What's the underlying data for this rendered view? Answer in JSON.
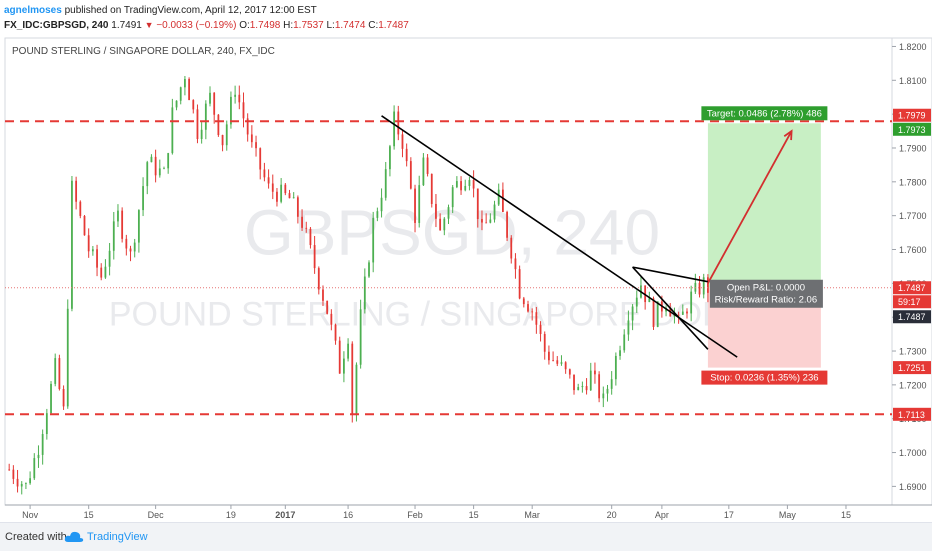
{
  "header": {
    "author": "agnelmoses",
    "published_text": " published on TradingView.com, April 12, 2017 12:00 EST",
    "symbol": "FX_IDC:GBPSGD, 240",
    "last": "1.7491",
    "change": "−0.0033 (−0.19%)",
    "o_label": "O:",
    "o_val": "1.7498",
    "h_label": "H:",
    "h_val": "1.7537",
    "l_label": "L:",
    "l_val": "1.7474",
    "c_label": "C:",
    "c_val": "1.7487"
  },
  "footer": {
    "created": "Created with",
    "brand": "TradingView"
  },
  "chart_data": {
    "type": "candlestick",
    "title": "POUND STERLING / SINGAPORE DOLLAR, 240, FX_IDC",
    "watermark_symbol": "GBPSGD, 240",
    "watermark_name": "POUND STERLING / SINGAPORE DOLLAR",
    "ylim": [
      1.685,
      1.825
    ],
    "y_ticks": [
      "1.6900",
      "1.7000",
      "1.7100",
      "1.7200",
      "1.7300",
      "1.7400",
      "1.7500",
      "1.7600",
      "1.7700",
      "1.7800",
      "1.7900",
      "1.8000",
      "1.8100",
      "1.8200"
    ],
    "x_ticks": [
      "Nov",
      "15",
      "Dec",
      "19",
      "2017",
      "16",
      "Feb",
      "15",
      "Mar",
      "20",
      "Apr",
      "17",
      "May",
      "15"
    ],
    "x_tick_dates": [
      "2016-11-01",
      "2016-11-15",
      "2016-12-01",
      "2016-12-19",
      "2017-01-01",
      "2017-01-16",
      "2017-02-01",
      "2017-02-15",
      "2017-03-01",
      "2017-03-20",
      "2017-04-01",
      "2017-04-17",
      "2017-05-01",
      "2017-05-15"
    ],
    "price_path": [
      [
        "2016-10-27",
        1.695
      ],
      [
        "2016-10-31",
        1.69
      ],
      [
        "2016-11-03",
        1.702
      ],
      [
        "2016-11-07",
        1.725
      ],
      [
        "2016-11-09",
        1.712
      ],
      [
        "2016-11-11",
        1.778
      ],
      [
        "2016-11-15",
        1.76
      ],
      [
        "2016-11-18",
        1.752
      ],
      [
        "2016-11-22",
        1.77
      ],
      [
        "2016-11-25",
        1.758
      ],
      [
        "2016-11-29",
        1.786
      ],
      [
        "2016-12-03",
        1.782
      ],
      [
        "2016-12-05",
        1.8
      ],
      [
        "2016-12-08",
        1.812
      ],
      [
        "2016-12-11",
        1.795
      ],
      [
        "2016-12-14",
        1.805
      ],
      [
        "2016-12-17",
        1.792
      ],
      [
        "2016-12-20",
        1.808
      ],
      [
        "2016-12-24",
        1.79
      ],
      [
        "2016-12-28",
        1.778
      ],
      [
        "2017-01-02",
        1.775
      ],
      [
        "2017-01-05",
        1.768
      ],
      [
        "2017-01-08",
        1.755
      ],
      [
        "2017-01-11",
        1.742
      ],
      [
        "2017-01-14",
        1.725
      ],
      [
        "2017-01-16",
        1.735
      ],
      [
        "2017-01-17",
        1.712
      ],
      [
        "2017-01-19",
        1.74
      ],
      [
        "2017-01-22",
        1.768
      ],
      [
        "2017-01-25",
        1.782
      ],
      [
        "2017-01-27",
        1.798
      ],
      [
        "2017-01-29",
        1.792
      ],
      [
        "2017-02-01",
        1.77
      ],
      [
        "2017-02-03",
        1.785
      ],
      [
        "2017-02-07",
        1.765
      ],
      [
        "2017-02-10",
        1.778
      ],
      [
        "2017-02-14",
        1.783
      ],
      [
        "2017-02-17",
        1.765
      ],
      [
        "2017-02-21",
        1.775
      ],
      [
        "2017-02-24",
        1.76
      ],
      [
        "2017-02-26",
        1.748
      ],
      [
        "2017-03-01",
        1.742
      ],
      [
        "2017-03-04",
        1.73
      ],
      [
        "2017-03-08",
        1.725
      ],
      [
        "2017-03-12",
        1.718
      ],
      [
        "2017-03-15",
        1.723
      ],
      [
        "2017-03-18",
        1.715
      ],
      [
        "2017-03-21",
        1.728
      ],
      [
        "2017-03-24",
        1.742
      ],
      [
        "2017-03-27",
        1.75
      ],
      [
        "2017-03-30",
        1.74
      ],
      [
        "2017-04-02",
        1.745
      ],
      [
        "2017-04-05",
        1.738
      ],
      [
        "2017-04-08",
        1.746
      ],
      [
        "2017-04-11",
        1.75
      ],
      [
        "2017-04-12",
        1.7487
      ]
    ],
    "horizontal_levels": [
      1.7979,
      1.7113
    ],
    "trendlines": [
      {
        "from": [
          "2017-01-24",
          1.7995
        ],
        "to": [
          "2017-04-19",
          1.7282
        ],
        "color": "#000000"
      },
      {
        "from": [
          "2017-03-25",
          1.7548
        ],
        "to": [
          "2017-04-12",
          1.7505
        ],
        "color": "#000000"
      },
      {
        "from": [
          "2017-03-25",
          1.7548
        ],
        "to": [
          "2017-04-12",
          1.7305
        ],
        "color": "#000000"
      }
    ],
    "position": {
      "type": "long",
      "entry": 1.7487,
      "target": 1.7973,
      "stop": 1.7251,
      "start_date": "2017-04-12",
      "end_date": "2017-05-09",
      "target_label": "Target: 0.0486 (2.78%) 486",
      "stop_label": "Stop: 0.0236 (1.35%) 236",
      "pnl_label": "Open P&L: 0.0000",
      "rr_label": "Risk/Reward Ratio: 2.06"
    },
    "arrow": {
      "from": [
        "2017-04-12",
        1.75
      ],
      "to": [
        "2017-05-02",
        1.795
      ],
      "color": "#d32f2f"
    },
    "price_labels": [
      {
        "value": 1.81,
        "text": "1.8100",
        "style": "tick"
      },
      {
        "value": 1.7979,
        "text": "1.7979",
        "style": "red"
      },
      {
        "value": 1.7973,
        "text": "1.7973",
        "style": "green"
      },
      {
        "value": 1.7487,
        "text": "1.7487",
        "style": "red"
      },
      {
        "value": 1.7487,
        "text": "59:17",
        "style": "red-sub"
      },
      {
        "value": 1.7487,
        "text": "1.7487",
        "style": "dark-below"
      },
      {
        "value": 1.7251,
        "text": "1.7251",
        "style": "red"
      },
      {
        "value": 1.7113,
        "text": "1.7113",
        "style": "red"
      }
    ],
    "colors": {
      "up": "#4caf50",
      "down": "#e53935",
      "level": "#e53935",
      "target_fill": "#c8efc4",
      "stop_fill": "#fbd1d1",
      "target_box": "#2e9e2e",
      "stop_box": "#e53935"
    }
  }
}
